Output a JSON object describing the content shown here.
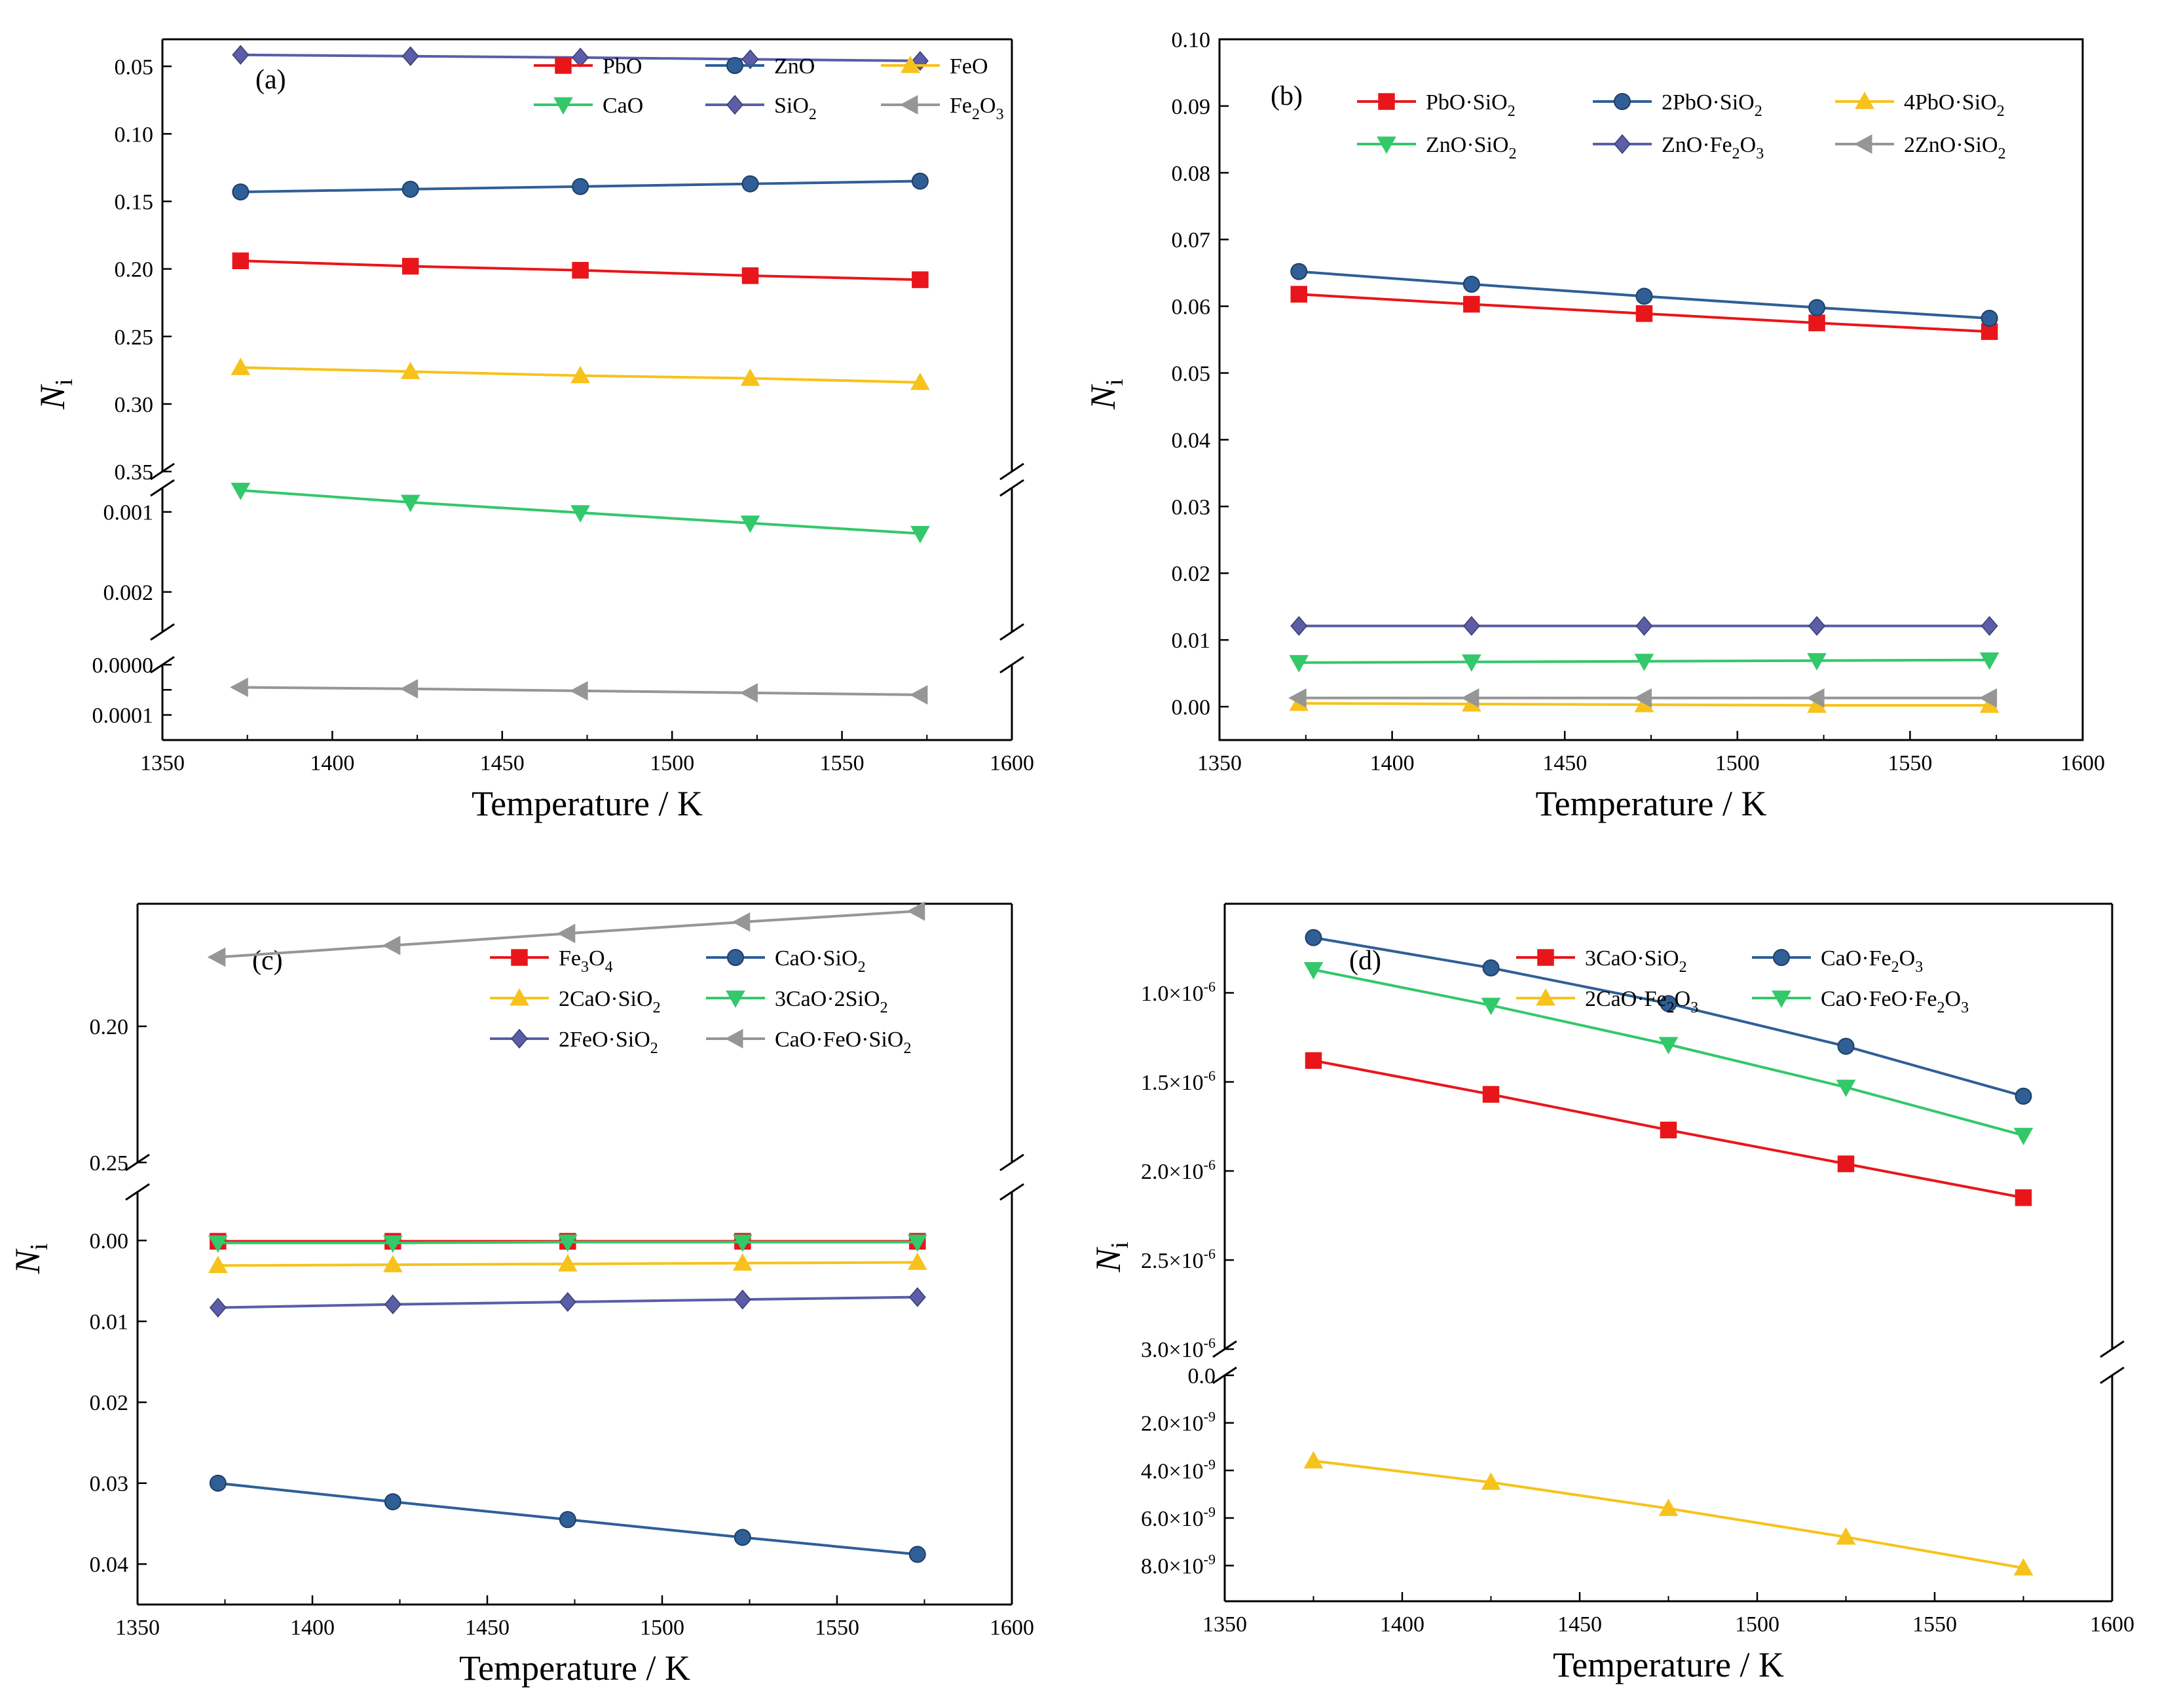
{
  "chart_data": [
    {
      "type": "line",
      "panel_label": "(a)",
      "xlabel": "Temperature / K",
      "ylabel": {
        "main": "N",
        "sub": "i"
      },
      "xlim": [
        1350,
        1600
      ],
      "xticks": [
        "1350",
        "1400",
        "1450",
        "1500",
        "1550",
        "1600"
      ],
      "axis_breaks": "broken y-axis: 0–0.00015 | 0.0007–0.0025 | 0.03–0.35",
      "segments": [
        {
          "ylim": [
            0,
            0.00015
          ],
          "ticks": [
            0,
            5e-05,
            0.0001
          ],
          "ticklabels": [
            "0.0000",
            "",
            "0.0001"
          ]
        },
        {
          "ylim": [
            0.0007,
            0.0025
          ],
          "ticks": [
            0.001,
            0.002
          ],
          "ticklabels": [
            "0.001",
            "0.002"
          ]
        },
        {
          "ylim": [
            0.03,
            0.35
          ],
          "ticks": [
            0.05,
            0.1,
            0.15,
            0.2,
            0.25,
            0.3,
            0.35
          ],
          "ticklabels": [
            "0.05",
            "0.10",
            "0.15",
            "0.20",
            "0.25",
            "0.30",
            "0.35"
          ]
        }
      ],
      "x": [
        1373,
        1423,
        1473,
        1523,
        1573
      ],
      "series": [
        {
          "name": "PbO",
          "label": "PbO",
          "color": "#e8161b",
          "marker": "square",
          "segment": 2,
          "values": [
            0.194,
            0.198,
            0.201,
            0.205,
            0.208
          ]
        },
        {
          "name": "ZnO",
          "label": "ZnO",
          "color": "#2f5f96",
          "marker": "circle",
          "segment": 2,
          "values": [
            0.143,
            0.141,
            0.139,
            0.137,
            0.135
          ]
        },
        {
          "name": "FeO",
          "label": "FeO",
          "color": "#f7c21b",
          "marker": "triangle-up",
          "segment": 2,
          "values": [
            0.273,
            0.276,
            0.279,
            0.281,
            0.284
          ]
        },
        {
          "name": "CaO",
          "label": "CaO",
          "color": "#33c86a",
          "marker": "triangle-down",
          "segment": 1,
          "values": [
            0.00073,
            0.00088,
            0.00101,
            0.00114,
            0.00127
          ]
        },
        {
          "name": "SiO2",
          "label": "SiO",
          "label_sub": "2",
          "color": "#5b5ea6",
          "marker": "diamond",
          "segment": 2,
          "values": [
            0.0415,
            0.0425,
            0.0435,
            0.0448,
            0.046
          ]
        },
        {
          "name": "Fe2O3",
          "label": "Fe",
          "label_sub": "2",
          "label_rest": "O",
          "label_sub2": "3",
          "color": "#969696",
          "marker": "triangle-left",
          "segment": 0,
          "values": [
            4.5e-05,
            4.8e-05,
            5.2e-05,
            5.6e-05,
            6e-05
          ]
        }
      ]
    },
    {
      "type": "line",
      "panel_label": "(b)",
      "xlabel": "Temperature / K",
      "ylabel": {
        "main": "N",
        "sub": "i"
      },
      "xlim": [
        1350,
        1600
      ],
      "xticks": [
        "1350",
        "1400",
        "1450",
        "1500",
        "1550",
        "1600"
      ],
      "ylim": [
        -0.005,
        0.1
      ],
      "yticks": [
        "0.00",
        "0.01",
        "0.02",
        "0.03",
        "0.04",
        "0.05",
        "0.06",
        "0.07",
        "0.08",
        "0.09",
        "0.10"
      ],
      "x": [
        1373,
        1423,
        1473,
        1523,
        1573
      ],
      "series": [
        {
          "name": "PbO·SiO2",
          "label": "PbO·SiO",
          "label_sub": "2",
          "color": "#e8161b",
          "marker": "square",
          "values": [
            0.0618,
            0.0603,
            0.0589,
            0.0575,
            0.0562
          ]
        },
        {
          "name": "2PbO·SiO2",
          "label": "2PbO·SiO",
          "label_sub": "2",
          "color": "#2f5f96",
          "marker": "circle",
          "values": [
            0.0652,
            0.0633,
            0.0615,
            0.0598,
            0.0582
          ]
        },
        {
          "name": "4PbO·SiO2",
          "label": "4PbO·SiO",
          "label_sub": "2",
          "color": "#f7c21b",
          "marker": "triangle-up",
          "values": [
            0.0005,
            0.0004,
            0.0003,
            0.0002,
            0.0002
          ]
        },
        {
          "name": "ZnO·SiO2",
          "label": "ZnO·SiO",
          "label_sub": "2",
          "color": "#33c86a",
          "marker": "triangle-down",
          "values": [
            0.0066,
            0.0067,
            0.0068,
            0.0069,
            0.007
          ]
        },
        {
          "name": "ZnO·Fe2O3",
          "label": "ZnO·Fe",
          "label_sub": "2",
          "label_rest": "O",
          "label_sub2": "3",
          "color": "#5b5ea6",
          "marker": "diamond",
          "values": [
            0.0121,
            0.0121,
            0.0121,
            0.0121,
            0.0121
          ]
        },
        {
          "name": "2ZnO·SiO2",
          "label": "2ZnO·SiO",
          "label_sub": "2",
          "color": "#969696",
          "marker": "triangle-left",
          "values": [
            0.0013,
            0.0013,
            0.0013,
            0.0013,
            0.0013
          ]
        }
      ]
    },
    {
      "type": "line",
      "panel_label": "(c)",
      "xlabel": "Temperature / K",
      "ylabel": {
        "main": "N",
        "sub": "i"
      },
      "xlim": [
        1350,
        1600
      ],
      "xticks": [
        "1350",
        "1400",
        "1450",
        "1500",
        "1550",
        "1600"
      ],
      "axis_breaks": "broken y-axis: -0.006–0.045 | 0.155–0.25",
      "segments": [
        {
          "ylim": [
            -0.006,
            0.045
          ],
          "ticks": [
            0,
            0.01,
            0.02,
            0.03,
            0.04
          ],
          "ticklabels": [
            "0.00",
            "0.01",
            "0.02",
            "0.03",
            "0.04"
          ]
        },
        {
          "ylim": [
            0.155,
            0.25
          ],
          "ticks": [
            0.2,
            0.25
          ],
          "ticklabels": [
            "0.20",
            "0.25"
          ]
        }
      ],
      "x": [
        1373,
        1423,
        1473,
        1523,
        1573
      ],
      "series": [
        {
          "name": "Fe3O4",
          "label": "Fe",
          "label_sub": "3",
          "label_rest": "O",
          "label_sub2": "4",
          "color": "#e8161b",
          "marker": "square",
          "segment": 0,
          "values": [
            0.0001,
            0.0001,
            0.0001,
            0.0001,
            0.0001
          ]
        },
        {
          "name": "CaO·SiO2",
          "label": "CaO·SiO",
          "label_sub": "2",
          "color": "#2f5f96",
          "marker": "circle",
          "segment": 0,
          "values": [
            0.03,
            0.0323,
            0.0345,
            0.0367,
            0.0388
          ]
        },
        {
          "name": "2CaO·SiO2",
          "label": "2CaO·SiO",
          "label_sub": "2",
          "color": "#f7c21b",
          "marker": "triangle-up",
          "segment": 0,
          "values": [
            0.0031,
            0.003,
            0.0029,
            0.0028,
            0.0027
          ]
        },
        {
          "name": "3CaO·2SiO2",
          "label": "3CaO·2SiO",
          "label_sub": "2",
          "color": "#33c86a",
          "marker": "triangle-down",
          "segment": 0,
          "values": [
            0.0003,
            0.0003,
            0.0002,
            0.0002,
            0.0002
          ]
        },
        {
          "name": "2FeO·SiO2",
          "label": "2FeO·SiO",
          "label_sub": "2",
          "color": "#5b5ea6",
          "marker": "diamond",
          "segment": 0,
          "values": [
            0.0083,
            0.0079,
            0.0076,
            0.0073,
            0.007
          ]
        },
        {
          "name": "CaO·FeO·SiO2",
          "label": "CaO·FeO·SiO",
          "label_sub": "2",
          "color": "#969696",
          "marker": "triangle-left",
          "segment": 1,
          "values": [
            0.1746,
            0.1703,
            0.1659,
            0.1617,
            0.1577
          ]
        }
      ]
    },
    {
      "type": "line",
      "panel_label": "(d)",
      "xlabel": "Temperature / K",
      "ylabel": {
        "main": "N",
        "sub": "i"
      },
      "xlim": [
        1350,
        1600
      ],
      "xticks": [
        "1350",
        "1400",
        "1450",
        "1500",
        "1550",
        "1600"
      ],
      "axis_breaks": "broken y-axis: 0–9.5e-9 | 0.5e-6–3.0e-6",
      "segments": [
        {
          "ylim": [
            0,
            9.5e-09
          ],
          "ticks": [
            0,
            2e-09,
            4e-09,
            6e-09,
            8e-09
          ],
          "ticklabels": [
            "0.0",
            "2.0×10",
            "4.0×10",
            "6.0×10",
            "8.0×10"
          ],
          "tickexp": [
            "",
            "-9",
            "-9",
            "-9",
            "-9"
          ]
        },
        {
          "ylim": [
            5e-07,
            3e-06
          ],
          "ticks": [
            1e-06,
            1.5e-06,
            2e-06,
            2.5e-06,
            3e-06
          ],
          "ticklabels": [
            "1.0×10",
            "1.5×10",
            "2.0×10",
            "2.5×10",
            "3.0×10"
          ],
          "tickexp": [
            "-6",
            "-6",
            "-6",
            "-6",
            "-6"
          ]
        }
      ],
      "x": [
        1375,
        1425,
        1475,
        1525,
        1575
      ],
      "series": [
        {
          "name": "3CaO·SiO2",
          "label": "3CaO·SiO",
          "label_sub": "2",
          "color": "#e8161b",
          "marker": "square",
          "segment": 1,
          "values": [
            1.38e-06,
            1.57e-06,
            1.77e-06,
            1.96e-06,
            2.15e-06
          ]
        },
        {
          "name": "CaO·Fe2O3",
          "label": "CaO·Fe",
          "label_sub": "2",
          "label_rest": "O",
          "label_sub2": "3",
          "color": "#2f5f96",
          "marker": "circle",
          "segment": 1,
          "values": [
            6.9e-07,
            8.6e-07,
            1.06e-06,
            1.3e-06,
            1.58e-06
          ]
        },
        {
          "name": "2CaO·Fe2O3",
          "label": "2CaO·Fe",
          "label_sub": "2",
          "label_rest": "O",
          "label_sub2": "3",
          "color": "#f7c21b",
          "marker": "triangle-up",
          "segment": 0,
          "values": [
            3.6e-09,
            4.5e-09,
            5.6e-09,
            6.8e-09,
            8.1e-09
          ]
        },
        {
          "name": "CaO·FeO·Fe2O3",
          "label": "CaO·FeO·Fe",
          "label_sub": "2",
          "label_rest": "O",
          "label_sub2": "3",
          "color": "#33c86a",
          "marker": "triangle-down",
          "segment": 1,
          "values": [
            8.7e-07,
            1.07e-06,
            1.29e-06,
            1.53e-06,
            1.8e-06
          ]
        }
      ]
    }
  ]
}
